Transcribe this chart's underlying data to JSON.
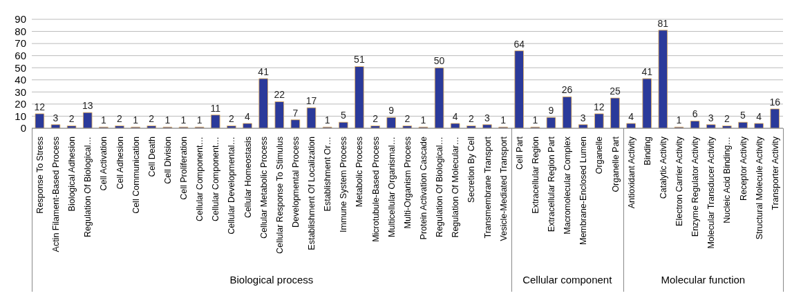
{
  "chart_data": {
    "type": "bar",
    "categories": [
      "Response To Stress",
      "Actin Filament-Based Process",
      "Biological Adhesion",
      "Regulation Of Biological…",
      "Cell Activation",
      "Cell Adhesion",
      "Cell Communication",
      "Cell Death",
      "Cell Division",
      "Cell Proliferation",
      "Cellular Component…",
      "Cellular Component…",
      "Cellular Developmental…",
      "Cellular Homeostasis",
      "Cellular Metabolic Process",
      "Cellular Response To Stimulus",
      "Developmental Process",
      "Establishment Of Localization",
      "Establishment Or…",
      "Immune System Process",
      "Metabolic Process",
      "Microtubule-Based Process",
      "Multicellular Organismal…",
      "Multi-Organism Process",
      "Protein Activation Cascade",
      "Regulation Of Biological…",
      "Regulation Of Molecular…",
      "Secretion By Cell",
      "Transmembrane Transport",
      "Vesicle-Mediated Transport",
      "Cell Part",
      "Extracellular Region",
      "Extracellular Region Part",
      "Macromolecular Complex",
      "Membrane-Enclosed Lumen",
      "Organelle",
      "Organelle Part",
      "Antioxidant Activity",
      "Binding",
      "Catalytic Activity",
      "Electron Carrier Activity",
      "Enzyme Regulator Activity",
      "Molecular Transducer Activity",
      "Nucleic Acid Binding…",
      "Receptor Activity",
      "Structural Molecule Activity",
      "Transporter Activity"
    ],
    "values": [
      12,
      3,
      2,
      13,
      1,
      2,
      1,
      2,
      1,
      1,
      1,
      11,
      2,
      4,
      41,
      22,
      7,
      17,
      1,
      5,
      51,
      2,
      9,
      2,
      1,
      50,
      4,
      2,
      3,
      1,
      64,
      1,
      9,
      26,
      3,
      12,
      25,
      4,
      41,
      81,
      1,
      6,
      3,
      2,
      5,
      4,
      16
    ],
    "color": "#2b3a9a",
    "ylim": [
      0,
      90
    ],
    "yticks": [
      0,
      10,
      20,
      30,
      40,
      50,
      60,
      70,
      80,
      90
    ],
    "grid": "y",
    "data_labels": true,
    "annotations": [
      "Biological process",
      "Cellular component",
      "Molecular function"
    ]
  }
}
